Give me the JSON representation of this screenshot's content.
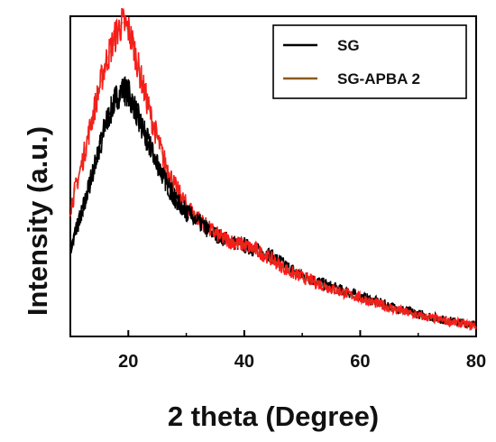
{
  "chart_data": {
    "type": "line",
    "xlabel": "2 theta (Degree)",
    "ylabel": "Intensity (a.u.)",
    "xlim": [
      10,
      80
    ],
    "ylim": [
      0,
      1
    ],
    "x_ticks": [
      20,
      40,
      60,
      80
    ],
    "x_tick_labels": [
      "20",
      "40",
      "60",
      "80"
    ],
    "y_ticks_labeled": false,
    "grid": false,
    "legend": "top-right",
    "series": [
      {
        "name": "SG",
        "color": "#000000",
        "x": [
          10,
          12,
          14,
          16,
          18,
          19,
          20,
          21,
          22,
          24,
          26,
          28,
          30,
          32,
          34,
          36,
          38,
          40,
          42,
          44,
          46,
          48,
          50,
          55,
          60,
          65,
          70,
          75,
          80
        ],
        "y": [
          0.27,
          0.39,
          0.52,
          0.66,
          0.75,
          0.77,
          0.76,
          0.72,
          0.67,
          0.58,
          0.5,
          0.43,
          0.39,
          0.36,
          0.33,
          0.31,
          0.295,
          0.285,
          0.27,
          0.26,
          0.235,
          0.21,
          0.19,
          0.155,
          0.125,
          0.095,
          0.07,
          0.05,
          0.035
        ]
      },
      {
        "name": "SG-APBA 2",
        "color": "#8b5a1a",
        "x": [
          10,
          12,
          14,
          16,
          18,
          19,
          20,
          21,
          22,
          24,
          26,
          28,
          30,
          32,
          34,
          36,
          38,
          40,
          42,
          44,
          46,
          48,
          50,
          55,
          60,
          65,
          70,
          75,
          80
        ],
        "y": [
          0.4,
          0.54,
          0.7,
          0.85,
          0.95,
          0.98,
          0.96,
          0.9,
          0.82,
          0.68,
          0.56,
          0.47,
          0.41,
          0.37,
          0.335,
          0.31,
          0.295,
          0.285,
          0.27,
          0.25,
          0.225,
          0.2,
          0.185,
          0.15,
          0.12,
          0.09,
          0.065,
          0.048,
          0.033
        ]
      }
    ],
    "overlay_color": "#ff1a1a"
  }
}
